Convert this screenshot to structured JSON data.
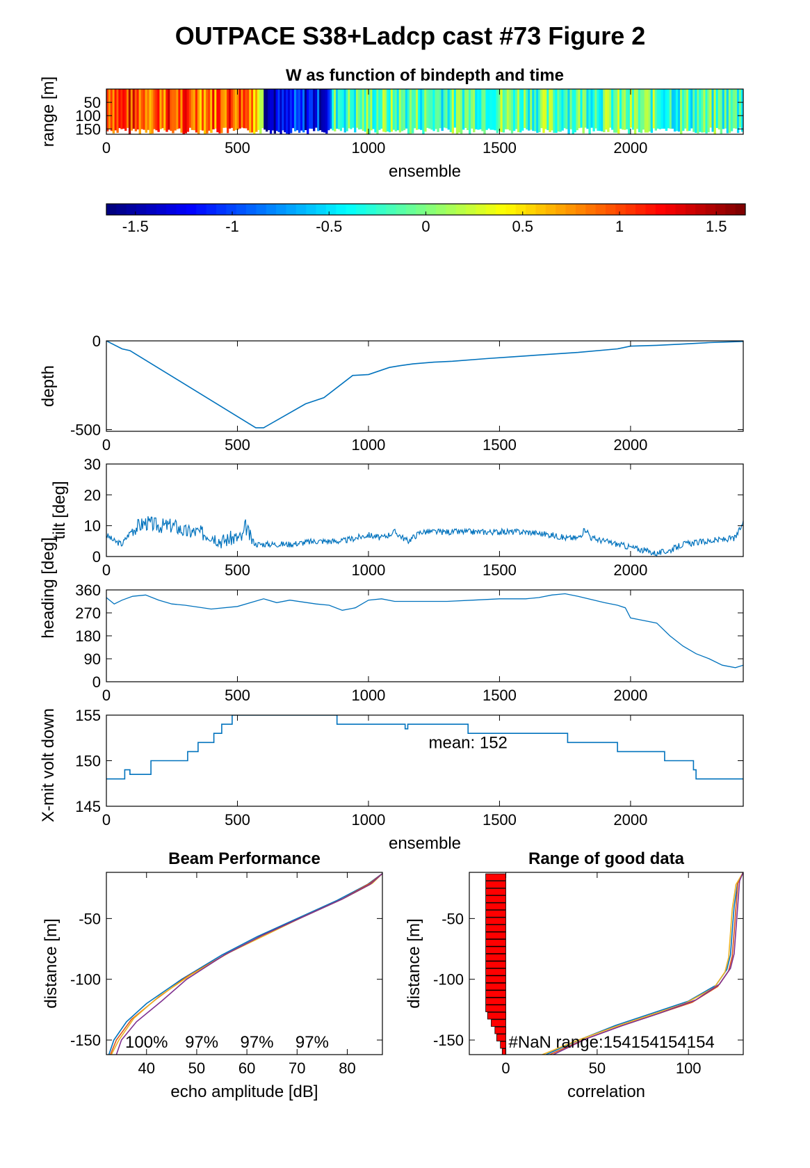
{
  "figure_title": "OUTPACE S38+Ladcp cast #73 Figure 2",
  "colors": {
    "line": "#0072BD",
    "red_bar": "#FF0000",
    "beam": [
      "#0072BD",
      "#D95319",
      "#EDB120",
      "#7E2F8E"
    ]
  },
  "chart_data": [
    {
      "id": "wmap",
      "type": "heatmap",
      "title": "W as function of bindepth and time",
      "xlabel": "ensemble",
      "ylabel": "range [m]",
      "xlim": [
        0,
        2430
      ],
      "ylim": [
        170,
        0
      ],
      "xticks": [
        0,
        500,
        1000,
        1500,
        2000
      ],
      "yticks": [
        50,
        100,
        150
      ],
      "colormap": "jet",
      "clim": [
        -1.65,
        1.65
      ],
      "colorbar_ticks": [
        -1.5,
        -1,
        -0.5,
        0,
        0.5,
        1,
        1.5
      ],
      "segments": [
        {
          "x0": 0,
          "x1": 100,
          "w": 1.1
        },
        {
          "x0": 100,
          "x1": 250,
          "w": 1.0
        },
        {
          "x0": 250,
          "x1": 420,
          "w": 0.95
        },
        {
          "x0": 420,
          "x1": 560,
          "w": 1.05
        },
        {
          "x0": 560,
          "x1": 600,
          "w": 0.55
        },
        {
          "x0": 600,
          "x1": 700,
          "w": -1.4
        },
        {
          "x0": 700,
          "x1": 860,
          "w": -1.2
        },
        {
          "x0": 860,
          "x1": 960,
          "w": -0.2
        },
        {
          "x0": 960,
          "x1": 1100,
          "w": -0.1
        },
        {
          "x0": 1100,
          "x1": 1350,
          "w": -0.15
        },
        {
          "x0": 1350,
          "x1": 1600,
          "w": -0.05
        },
        {
          "x0": 1600,
          "x1": 1800,
          "w": -0.1
        },
        {
          "x0": 1800,
          "x1": 2100,
          "w": -0.1
        },
        {
          "x0": 2100,
          "x1": 2430,
          "w": -0.2
        }
      ]
    },
    {
      "id": "depth",
      "type": "line",
      "xlabel": "",
      "ylabel": "depth",
      "xlim": [
        0,
        2430
      ],
      "ylim": [
        -510,
        0
      ],
      "xticks": [
        0,
        500,
        1000,
        1500,
        2000
      ],
      "yticks": [
        -500,
        0
      ],
      "x": [
        0,
        60,
        90,
        570,
        600,
        760,
        830,
        940,
        1000,
        1080,
        1120,
        1170,
        1250,
        1320,
        1450,
        1550,
        1700,
        1800,
        1950,
        2000,
        2100,
        2200,
        2300,
        2430
      ],
      "y": [
        0,
        -45,
        -55,
        -490,
        -490,
        -355,
        -320,
        -195,
        -190,
        -150,
        -140,
        -130,
        -120,
        -115,
        -100,
        -90,
        -75,
        -65,
        -45,
        -30,
        -25,
        -18,
        -10,
        -3
      ]
    },
    {
      "id": "tilt",
      "type": "line",
      "xlabel": "",
      "ylabel": "tilt [deg]",
      "xlim": [
        0,
        2430
      ],
      "ylim": [
        0,
        30
      ],
      "xticks": [
        0,
        500,
        1000,
        1500,
        2000
      ],
      "yticks": [
        0,
        10,
        20,
        30
      ],
      "x": [
        0,
        30,
        60,
        100,
        150,
        200,
        260,
        300,
        340,
        400,
        440,
        480,
        520,
        530,
        550,
        570,
        600,
        700,
        800,
        900,
        950,
        1000,
        1050,
        1100,
        1150,
        1200,
        1300,
        1400,
        1500,
        1600,
        1700,
        1750,
        1800,
        1830,
        1850,
        1900,
        1950,
        2000,
        2050,
        2100,
        2150,
        2200,
        2300,
        2400,
        2430
      ],
      "y": [
        7,
        5,
        4,
        9,
        11,
        10,
        10,
        8,
        8,
        7,
        5,
        6,
        6,
        10,
        6,
        4,
        4,
        4,
        5,
        5,
        6,
        7,
        6,
        8,
        5,
        8,
        8,
        8,
        8,
        8,
        7,
        6,
        6,
        9,
        6,
        5,
        4,
        3,
        2,
        1,
        2,
        4,
        5,
        6,
        11
      ]
    },
    {
      "id": "heading",
      "type": "line",
      "xlabel": "",
      "ylabel": "heading [deg]",
      "xlim": [
        0,
        2430
      ],
      "ylim": [
        0,
        360
      ],
      "xticks": [
        0,
        500,
        1000,
        1500,
        2000
      ],
      "yticks": [
        0,
        90,
        180,
        270,
        360
      ],
      "x": [
        0,
        30,
        60,
        100,
        150,
        200,
        250,
        300,
        400,
        500,
        600,
        650,
        700,
        800,
        850,
        900,
        950,
        1000,
        1050,
        1100,
        1200,
        1300,
        1400,
        1500,
        1600,
        1650,
        1700,
        1750,
        1800,
        1900,
        1950,
        1980,
        2000,
        2050,
        2100,
        2150,
        2200,
        2250,
        2300,
        2350,
        2400,
        2430
      ],
      "y": [
        330,
        305,
        320,
        335,
        340,
        320,
        305,
        300,
        285,
        295,
        325,
        310,
        320,
        305,
        300,
        280,
        290,
        320,
        325,
        315,
        315,
        315,
        320,
        325,
        325,
        330,
        340,
        345,
        335,
        310,
        300,
        290,
        250,
        240,
        230,
        180,
        140,
        110,
        90,
        65,
        55,
        65
      ]
    },
    {
      "id": "xmit",
      "type": "line",
      "xlabel": "ensemble",
      "ylabel": "X-mit volt down",
      "xlim": [
        0,
        2430
      ],
      "ylim": [
        145,
        155
      ],
      "xticks": [
        0,
        500,
        1000,
        1500,
        2000
      ],
      "yticks": [
        145,
        150,
        155
      ],
      "annotation": "mean: 152",
      "x": [
        0,
        70,
        70,
        90,
        90,
        170,
        170,
        310,
        310,
        350,
        350,
        410,
        410,
        440,
        440,
        480,
        480,
        550,
        550,
        880,
        880,
        1140,
        1140,
        1150,
        1150,
        1380,
        1380,
        1760,
        1760,
        1950,
        1950,
        2130,
        2130,
        2240,
        2240,
        2250,
        2250,
        2430
      ],
      "y": [
        148,
        148,
        149,
        149,
        148.5,
        148.5,
        150,
        150,
        151,
        151,
        152,
        152,
        153,
        153,
        154,
        154,
        155,
        155,
        155,
        155,
        154,
        154,
        153.5,
        153.5,
        154,
        154,
        153,
        153,
        152,
        152,
        151,
        151,
        150,
        150,
        149,
        149,
        148,
        148
      ]
    },
    {
      "id": "beam",
      "type": "line",
      "title": "Beam Performance",
      "xlabel": "echo amplitude [dB]",
      "ylabel": "distance [m]",
      "xlim": [
        32,
        87
      ],
      "ylim": [
        -162,
        -12
      ],
      "xticks": [
        40,
        50,
        60,
        70,
        80
      ],
      "yticks": [
        -50,
        -100,
        -150
      ],
      "percent_labels": [
        "100%",
        "97%",
        "97%",
        "97%"
      ],
      "series": [
        {
          "x": [
            32.5,
            33.5,
            36,
            40,
            47,
            55,
            62,
            70,
            78,
            84,
            87
          ],
          "y": [
            -162,
            -150,
            -135,
            -120,
            -100,
            -80,
            -65,
            -50,
            -35,
            -22,
            -13
          ]
        },
        {
          "x": [
            32.8,
            34,
            37,
            42,
            48,
            56,
            63,
            71,
            79,
            84.5,
            87
          ],
          "y": [
            -162,
            -150,
            -133,
            -116,
            -98,
            -79,
            -64,
            -49,
            -34,
            -21,
            -13
          ]
        },
        {
          "x": [
            33,
            34.5,
            37.5,
            42.5,
            49,
            56.5,
            64,
            71.5,
            79.5,
            85,
            87
          ],
          "y": [
            -162,
            -150,
            -132,
            -114,
            -96,
            -78,
            -63,
            -48,
            -33,
            -21,
            -13
          ]
        },
        {
          "x": [
            34,
            35,
            38,
            43,
            48,
            55.5,
            63,
            71,
            79,
            84.5,
            87
          ],
          "y": [
            -162,
            -150,
            -135,
            -118,
            -100,
            -80,
            -64,
            -49,
            -34,
            -22,
            -13
          ]
        }
      ]
    },
    {
      "id": "range",
      "type": "line",
      "title": "Range of good data",
      "xlabel": "correlation",
      "ylabel": "distance [m]",
      "xlim": [
        -20,
        130
      ],
      "ylim": [
        -162,
        -12
      ],
      "xticks": [
        0,
        50,
        100
      ],
      "yticks": [
        -50,
        -100,
        -150
      ],
      "annotation": "#NaN range:154154154154",
      "bars": {
        "y": [
          -16,
          -22,
          -28,
          -34,
          -40,
          -46,
          -52,
          -58,
          -64,
          -70,
          -76,
          -82,
          -88,
          -94,
          -100,
          -106,
          -112,
          -118,
          -124,
          -130,
          -136,
          -142,
          -148,
          -154,
          -160
        ],
        "x": [
          -11,
          -11,
          -11,
          -11,
          -11,
          -11,
          -11,
          -11,
          -11,
          -11,
          -11,
          -11,
          -11,
          -11,
          -11,
          -11,
          -11,
          -11,
          -11,
          -10,
          -8,
          -6,
          -5,
          -3,
          -2
        ]
      },
      "series": [
        {
          "x": [
            22,
            40,
            60,
            80,
            100,
            115,
            121,
            123,
            124,
            125,
            127,
            130
          ],
          "y": [
            -162,
            -150,
            -138,
            -128,
            -118,
            -105,
            -92,
            -80,
            -60,
            -40,
            -20,
            -12
          ]
        },
        {
          "x": [
            24,
            42,
            62,
            82,
            102,
            116,
            122,
            124,
            125,
            126,
            127,
            130
          ],
          "y": [
            -162,
            -150,
            -139,
            -129,
            -119,
            -106,
            -93,
            -81,
            -61,
            -41,
            -21,
            -12
          ]
        },
        {
          "x": [
            20,
            38,
            58,
            78,
            98,
            114,
            120,
            122,
            123,
            124,
            126,
            130
          ],
          "y": [
            -162,
            -151,
            -140,
            -130,
            -120,
            -107,
            -94,
            -82,
            -62,
            -42,
            -22,
            -12
          ]
        },
        {
          "x": [
            26,
            44,
            64,
            84,
            104,
            117,
            123,
            125,
            126,
            127,
            128,
            130
          ],
          "y": [
            -162,
            -149,
            -138,
            -128,
            -117,
            -104,
            -91,
            -79,
            -59,
            -39,
            -19,
            -12
          ]
        }
      ]
    }
  ]
}
